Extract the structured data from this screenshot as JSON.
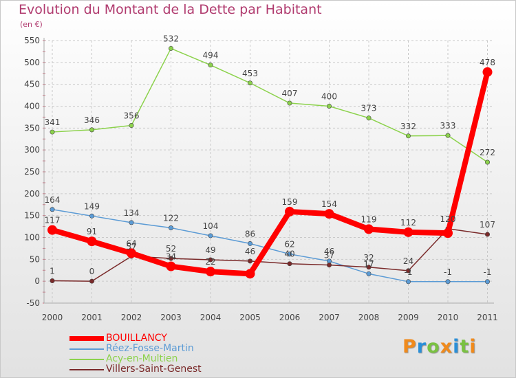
{
  "title": "Evolution du Montant de la Dette par Habitant",
  "unit": "(en €)",
  "logo": "Proxiti",
  "chart_data": {
    "type": "line",
    "title": "Evolution du Montant de la Dette par Habitant",
    "ylabel": "(en €)",
    "xlabel": "",
    "x": [
      "2000",
      "2001",
      "2002",
      "2003",
      "2004",
      "2005",
      "2006",
      "2007",
      "2008",
      "2009",
      "2010",
      "2011"
    ],
    "ylim": [
      -50,
      550
    ],
    "yticks": [
      -50,
      0,
      50,
      100,
      150,
      200,
      250,
      300,
      350,
      400,
      450,
      500,
      550
    ],
    "grid": true,
    "legend": "bottom-left",
    "series": [
      {
        "name": "BOUILLANCY",
        "color": "#ff0000",
        "values": [
          117,
          91,
          64,
          34,
          22,
          17,
          159,
          154,
          119,
          112,
          110,
          478
        ],
        "labels": [
          "117",
          "91",
          "64",
          "34",
          "22",
          "",
          "159",
          "154",
          "119",
          "112",
          "",
          "478"
        ]
      },
      {
        "name": "Réez-Fosse-Martin",
        "color": "#5b9bd5",
        "values": [
          164,
          149,
          134,
          122,
          104,
          86,
          62,
          46,
          17,
          -1,
          -1,
          -1
        ],
        "labels": [
          "164",
          "149",
          "134",
          "122",
          "104",
          "86",
          "62",
          "46",
          "17",
          "-1",
          "-1",
          "-1"
        ]
      },
      {
        "name": "Acy-en-Multien",
        "color": "#8cd24c",
        "values": [
          341,
          346,
          356,
          532,
          494,
          453,
          407,
          400,
          373,
          332,
          333,
          272
        ],
        "labels": [
          "341",
          "346",
          "356",
          "532",
          "494",
          "453",
          "407",
          "400",
          "373",
          "332",
          "333",
          "272"
        ]
      },
      {
        "name": "Villers-Saint-Genest",
        "color": "#7a2a2a",
        "values": [
          1,
          0,
          57,
          52,
          49,
          46,
          40,
          37,
          32,
          24,
          120,
          107
        ],
        "labels": [
          "1",
          "0",
          "57",
          "52",
          "49",
          "46",
          "40",
          "37",
          "32",
          "24",
          "120",
          "107"
        ]
      }
    ]
  }
}
